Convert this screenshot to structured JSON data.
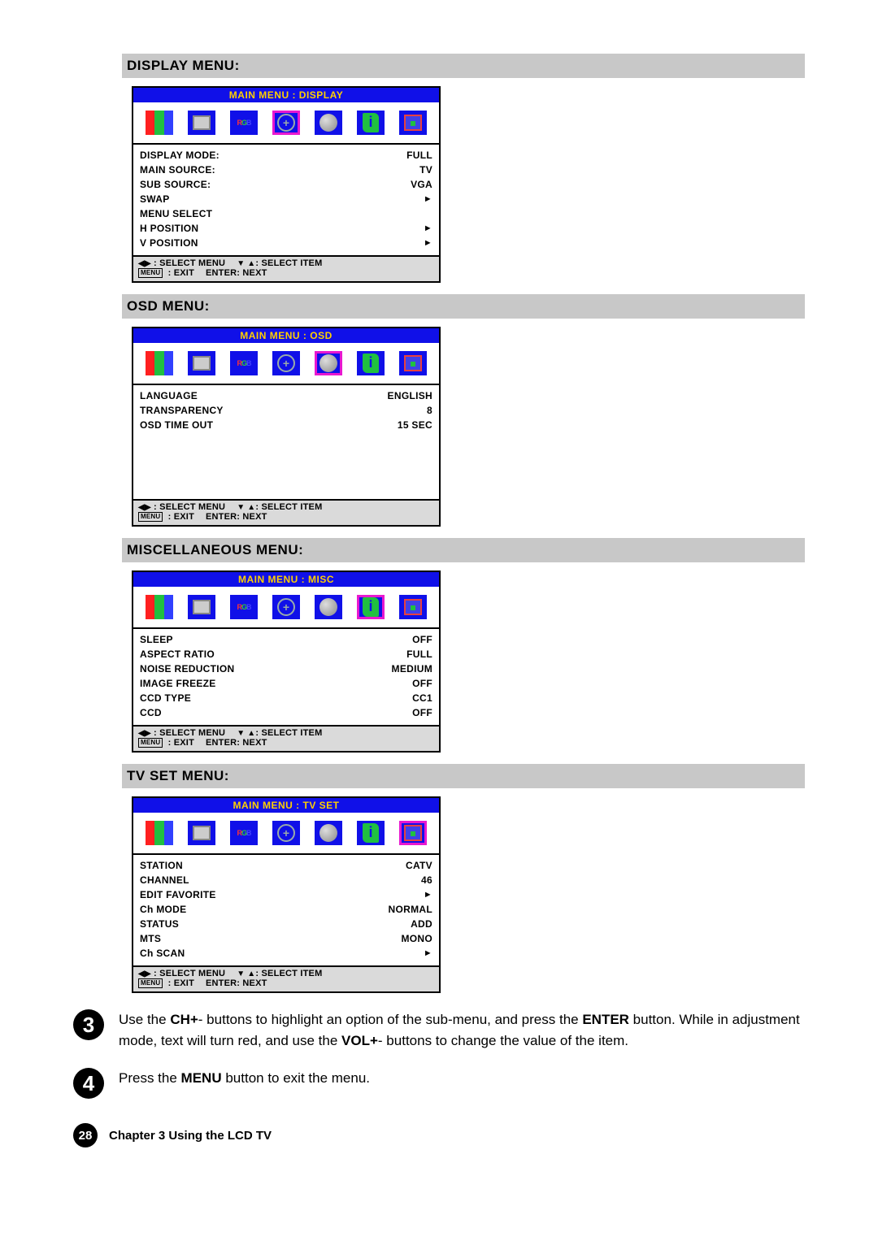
{
  "sections": [
    {
      "header": "DISPLAY MENU:",
      "title": "MAIN MENU : DISPLAY",
      "highlight": 3,
      "tall": false,
      "rows": [
        {
          "label": "DISPLAY MODE:",
          "value": "FULL"
        },
        {
          "label": "MAIN SOURCE:",
          "value": "TV"
        },
        {
          "label": "SUB SOURCE:",
          "value": "VGA"
        },
        {
          "label": "SWAP",
          "value": "►"
        },
        {
          "label": "MENU SELECT",
          "value": ""
        },
        {
          "label": "H POSITION",
          "value": "►"
        },
        {
          "label": "V POSITION",
          "value": "►"
        }
      ]
    },
    {
      "header": "OSD MENU:",
      "title": "MAIN MENU : OSD",
      "highlight": 4,
      "tall": true,
      "rows": [
        {
          "label": "LANGUAGE",
          "value": "ENGLISH"
        },
        {
          "label": "TRANSPARENCY",
          "value": "8"
        },
        {
          "label": "OSD TIME OUT",
          "value": "15 SEC"
        }
      ]
    },
    {
      "header": "MISCELLANEOUS MENU:",
      "title": "MAIN MENU : MISC",
      "highlight": 5,
      "tall": false,
      "rows": [
        {
          "label": "SLEEP",
          "value": "OFF"
        },
        {
          "label": "ASPECT RATIO",
          "value": "FULL"
        },
        {
          "label": "NOISE REDUCTION",
          "value": "MEDIUM"
        },
        {
          "label": "IMAGE FREEZE",
          "value": "OFF"
        },
        {
          "label": "CCD TYPE",
          "value": "CC1"
        },
        {
          "label": "CCD",
          "value": "OFF"
        }
      ]
    },
    {
      "header": "TV SET MENU:",
      "title": "MAIN MENU : TV SET",
      "highlight": 6,
      "tall": false,
      "rows": [
        {
          "label": "STATION",
          "value": "CATV"
        },
        {
          "label": "CHANNEL",
          "value": "46"
        },
        {
          "label": "EDIT FAVORITE",
          "value": "►"
        },
        {
          "label": "Ch MODE",
          "value": "NORMAL"
        },
        {
          "label": "STATUS",
          "value": "ADD"
        },
        {
          "label": "MTS",
          "value": "MONO"
        },
        {
          "label": "Ch SCAN",
          "value": "►"
        }
      ]
    }
  ],
  "help": {
    "sel_menu": ": SELECT MENU",
    "sel_item": ": SELECT ITEM",
    "exit": ": EXIT",
    "enter": "ENTER: NEXT",
    "menu_tag": "MENU"
  },
  "steps": [
    {
      "num": "3",
      "html": "Use the <b>CH+</b>- buttons to highlight an option of the sub-menu, and press the <b>ENTER</b> button. While in adjustment mode, text will turn red, and use the <b>VOL+</b>- buttons to change the value of the item."
    },
    {
      "num": "4",
      "html": "Press the <b>MENU</b> button to exit the menu."
    }
  ],
  "footer": {
    "page": "28",
    "chapter": "Chapter 3 Using the LCD TV"
  }
}
